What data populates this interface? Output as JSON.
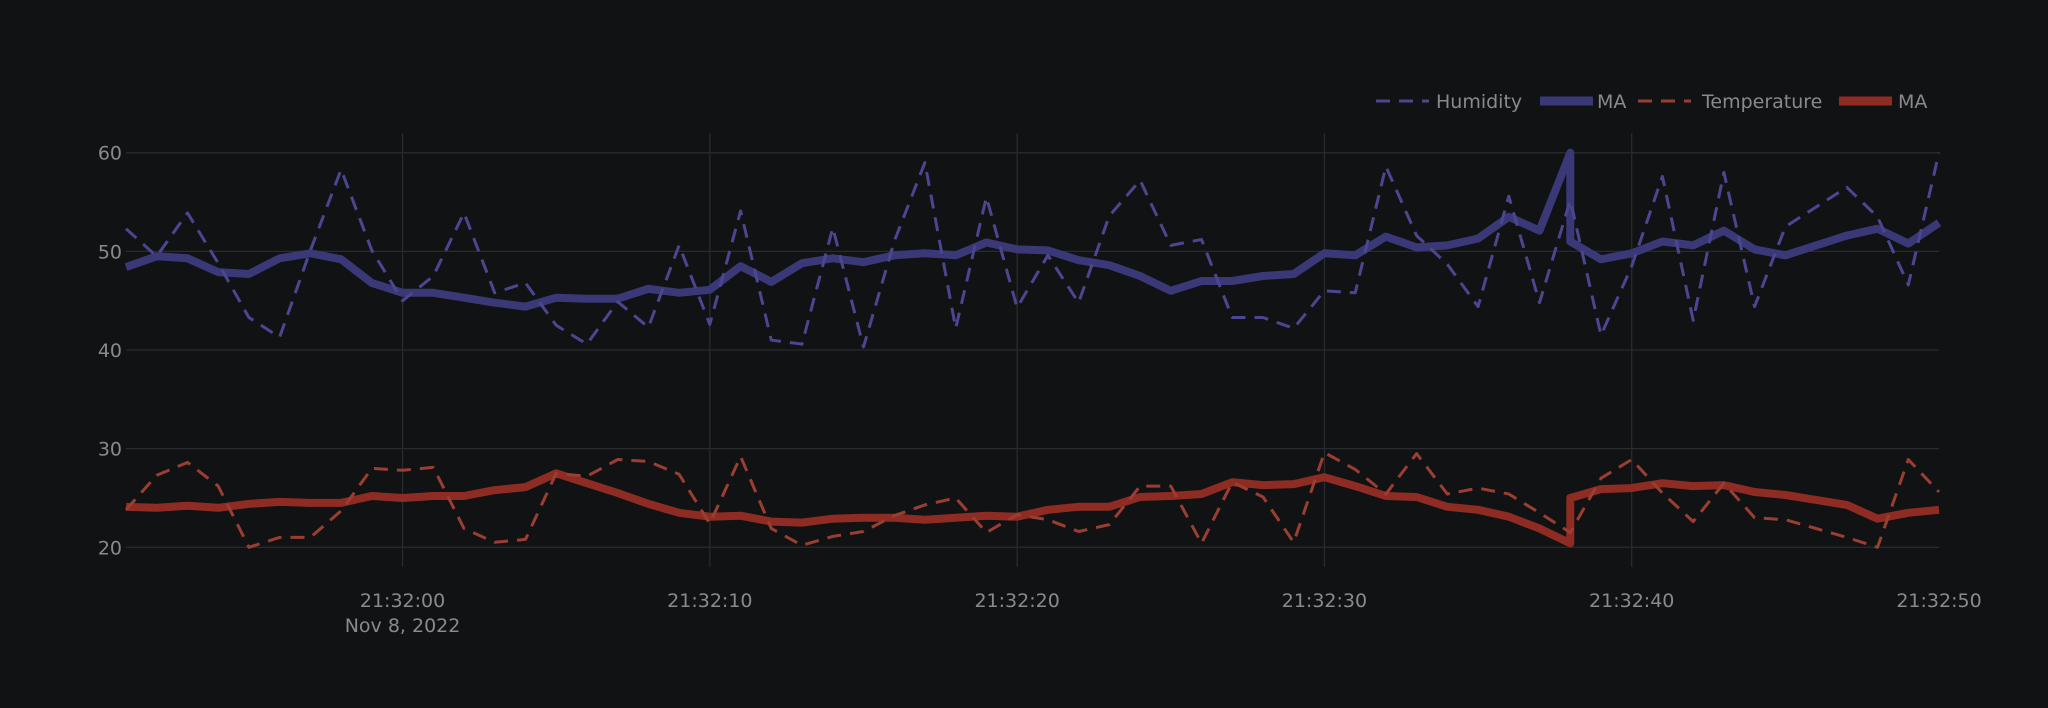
{
  "colors": {
    "background": "#111214",
    "grid": "#2a2b2f",
    "text": "#8a8a8e",
    "humidity": "#3b3878",
    "temperature": "#8e2c24"
  },
  "legend": {
    "items": [
      {
        "label": "Humidity",
        "style": "dashed",
        "color": "#4a4690"
      },
      {
        "label": "MA",
        "style": "solid",
        "color": "#3b3878"
      },
      {
        "label": "Temperature",
        "style": "dashed",
        "color": "#9a3e32"
      },
      {
        "label": "MA",
        "style": "solid",
        "color": "#8e2c24"
      }
    ]
  },
  "chart_data": {
    "type": "line",
    "title": "",
    "xlabel": "",
    "ylabel": "",
    "legend_position": "top-right",
    "grid": true,
    "xlim": [
      "21:31:51",
      "21:32:50"
    ],
    "ylim": [
      18,
      62
    ],
    "x_ticks": [
      {
        "value": "21:32:00",
        "label": "21:32:00",
        "sublabel": "Nov 8, 2022"
      },
      {
        "value": "21:32:10",
        "label": "21:32:10",
        "sublabel": ""
      },
      {
        "value": "21:32:20",
        "label": "21:32:20",
        "sublabel": ""
      },
      {
        "value": "21:32:30",
        "label": "21:32:30",
        "sublabel": ""
      },
      {
        "value": "21:32:40",
        "label": "21:32:40",
        "sublabel": ""
      },
      {
        "value": "21:32:50",
        "label": "21:32:50",
        "sublabel": ""
      }
    ],
    "y_ticks": [
      20,
      30,
      40,
      50,
      60
    ],
    "series": [
      {
        "name": "Humidity",
        "style": "dashed",
        "color": "#4a4690",
        "x": [
          "21:31:51",
          "21:31:52",
          "21:31:53",
          "21:31:54",
          "21:31:55",
          "21:31:56",
          "21:31:57",
          "21:31:58",
          "21:31:59",
          "21:32:00",
          "21:32:01",
          "21:32:02",
          "21:32:03",
          "21:32:04",
          "21:32:05",
          "21:32:06",
          "21:32:07",
          "21:32:08",
          "21:32:09",
          "21:32:10",
          "21:32:11",
          "21:32:12",
          "21:32:13",
          "21:32:14",
          "21:32:15",
          "21:32:16",
          "21:32:17",
          "21:32:18",
          "21:32:19",
          "21:32:20",
          "21:32:21",
          "21:32:22",
          "21:32:23",
          "21:32:24",
          "21:32:25",
          "21:32:26",
          "21:32:27",
          "21:32:28",
          "21:32:29",
          "21:32:30",
          "21:32:31",
          "21:32:32",
          "21:32:33",
          "21:32:34",
          "21:32:35",
          "21:32:36",
          "21:32:37",
          "21:32:38",
          "21:32:39",
          "21:32:40",
          "21:32:41",
          "21:32:42",
          "21:32:43",
          "21:32:44",
          "21:32:45",
          "21:32:46",
          "21:32:47",
          "21:32:48",
          "21:32:49",
          "21:32:50"
        ],
        "y": [
          52.3,
          49.5,
          53.9,
          48.8,
          43.3,
          41.3,
          50.1,
          58.3,
          50.1,
          45.0,
          47.5,
          53.9,
          45.8,
          46.8,
          42.5,
          40.6,
          44.9,
          42.3,
          50.6,
          42.6,
          54.1,
          41.0,
          40.6,
          52.4,
          40.3,
          51.0,
          59.0,
          42.2,
          55.5,
          44.3,
          49.6,
          44.8,
          53.6,
          57.2,
          50.6,
          51.2,
          43.3,
          43.3,
          42.2,
          46.0,
          45.8,
          58.6,
          51.6,
          48.7,
          44.4,
          55.6,
          44.8,
          55.2,
          41.5,
          48.5,
          57.6,
          43.0,
          58.0,
          44.4,
          52.5,
          54.5,
          56.5,
          53.5,
          46.6,
          60.0
        ]
      },
      {
        "name": "MA",
        "style": "solid",
        "color": "#3b3878",
        "x": [
          "21:31:51",
          "21:31:52",
          "21:31:53",
          "21:31:54",
          "21:31:55",
          "21:31:56",
          "21:31:57",
          "21:31:58",
          "21:31:59",
          "21:32:00",
          "21:32:01",
          "21:32:02",
          "21:32:03",
          "21:32:04",
          "21:32:05",
          "21:32:06",
          "21:32:07",
          "21:32:08",
          "21:32:09",
          "21:32:10",
          "21:32:11",
          "21:32:12",
          "21:32:13",
          "21:32:14",
          "21:32:15",
          "21:32:16",
          "21:32:17",
          "21:32:18",
          "21:32:19",
          "21:32:20",
          "21:32:21",
          "21:32:22",
          "21:32:23",
          "21:32:24",
          "21:32:25",
          "21:32:26",
          "21:32:27",
          "21:32:28",
          "21:32:29",
          "21:32:30",
          "21:32:31",
          "21:32:32",
          "21:32:33",
          "21:32:34",
          "21:32:35",
          "21:32:36",
          "21:32:37",
          "21:32:38",
          "21:32:38",
          "21:32:39",
          "21:32:40",
          "21:32:41",
          "21:32:42",
          "21:32:43",
          "21:32:44",
          "21:32:45",
          "21:32:46",
          "21:32:47",
          "21:32:48",
          "21:32:49",
          "21:32:50"
        ],
        "y": [
          48.4,
          49.5,
          49.3,
          47.9,
          47.7,
          49.3,
          49.8,
          49.2,
          46.8,
          45.8,
          45.8,
          45.3,
          44.8,
          44.4,
          45.3,
          45.2,
          45.2,
          46.2,
          45.8,
          46.1,
          48.5,
          46.9,
          48.8,
          49.3,
          48.9,
          49.6,
          49.8,
          49.6,
          50.9,
          50.2,
          50.1,
          49.1,
          48.6,
          47.5,
          46.0,
          47.0,
          47.0,
          47.5,
          47.7,
          49.8,
          49.6,
          51.5,
          50.4,
          50.6,
          51.3,
          53.5,
          52.1,
          60.0,
          51.0,
          49.2,
          49.8,
          51.0,
          50.6,
          52.1,
          50.2,
          49.6,
          50.6,
          51.6,
          52.3,
          50.8,
          52.9
        ]
      },
      {
        "name": "Temperature",
        "style": "dashed",
        "color": "#9a3e32",
        "x": [
          "21:31:51",
          "21:31:52",
          "21:31:53",
          "21:31:54",
          "21:31:55",
          "21:31:56",
          "21:31:57",
          "21:31:58",
          "21:31:59",
          "21:32:00",
          "21:32:01",
          "21:32:02",
          "21:32:03",
          "21:32:04",
          "21:32:05",
          "21:32:06",
          "21:32:07",
          "21:32:08",
          "21:32:09",
          "21:32:10",
          "21:32:11",
          "21:32:12",
          "21:32:13",
          "21:32:14",
          "21:32:15",
          "21:32:16",
          "21:32:17",
          "21:32:18",
          "21:32:19",
          "21:32:20",
          "21:32:21",
          "21:32:22",
          "21:32:23",
          "21:32:24",
          "21:32:25",
          "21:32:26",
          "21:32:27",
          "21:32:28",
          "21:32:29",
          "21:32:30",
          "21:32:31",
          "21:32:32",
          "21:32:33",
          "21:32:34",
          "21:32:35",
          "21:32:36",
          "21:32:37",
          "21:32:38",
          "21:32:39",
          "21:32:40",
          "21:32:41",
          "21:32:42",
          "21:32:43",
          "21:32:44",
          "21:32:45",
          "21:32:46",
          "21:32:47",
          "21:32:48",
          "21:32:49",
          "21:32:50"
        ],
        "y": [
          23.8,
          27.3,
          28.6,
          26.2,
          20.0,
          21.0,
          21.0,
          23.7,
          28.0,
          27.8,
          28.1,
          21.9,
          20.5,
          20.8,
          27.5,
          27.2,
          28.9,
          28.7,
          27.4,
          22.4,
          29.2,
          21.9,
          20.2,
          21.1,
          21.6,
          23.2,
          24.3,
          25.0,
          21.5,
          23.3,
          22.8,
          21.6,
          22.3,
          26.2,
          26.2,
          20.4,
          26.6,
          25.1,
          20.5,
          29.6,
          27.9,
          25.4,
          29.5,
          25.4,
          26.0,
          25.4,
          23.5,
          21.5,
          27.0,
          28.9,
          25.5,
          22.6,
          26.5,
          23.0,
          22.8,
          21.9,
          21.0,
          20.0,
          28.9,
          25.6
        ]
      },
      {
        "name": "MA",
        "style": "solid",
        "color": "#8e2c24",
        "x": [
          "21:31:51",
          "21:31:52",
          "21:31:53",
          "21:31:54",
          "21:31:55",
          "21:31:56",
          "21:31:57",
          "21:31:58",
          "21:31:59",
          "21:32:00",
          "21:32:01",
          "21:32:02",
          "21:32:03",
          "21:32:04",
          "21:32:05",
          "21:32:06",
          "21:32:07",
          "21:32:08",
          "21:32:09",
          "21:32:10",
          "21:32:11",
          "21:32:12",
          "21:32:13",
          "21:32:14",
          "21:32:15",
          "21:32:16",
          "21:32:17",
          "21:32:18",
          "21:32:19",
          "21:32:20",
          "21:32:21",
          "21:32:22",
          "21:32:23",
          "21:32:24",
          "21:32:25",
          "21:32:26",
          "21:32:27",
          "21:32:28",
          "21:32:29",
          "21:32:30",
          "21:32:31",
          "21:32:32",
          "21:32:33",
          "21:32:34",
          "21:32:35",
          "21:32:36",
          "21:32:37",
          "21:32:38",
          "21:32:38",
          "21:32:39",
          "21:32:40",
          "21:32:41",
          "21:32:42",
          "21:32:43",
          "21:32:44",
          "21:32:45",
          "21:32:46",
          "21:32:47",
          "21:32:48",
          "21:32:49",
          "21:32:50"
        ],
        "y": [
          24.1,
          24.0,
          24.2,
          24.0,
          24.4,
          24.6,
          24.5,
          24.5,
          25.2,
          25.0,
          25.2,
          25.2,
          25.8,
          26.1,
          27.5,
          26.5,
          25.5,
          24.4,
          23.5,
          23.1,
          23.2,
          22.6,
          22.5,
          22.9,
          23.0,
          23.0,
          22.8,
          23.0,
          23.2,
          23.1,
          23.8,
          24.1,
          24.1,
          25.1,
          25.2,
          25.4,
          26.6,
          26.3,
          26.4,
          27.1,
          26.2,
          25.2,
          25.1,
          24.1,
          23.8,
          23.1,
          21.9,
          20.4,
          25.0,
          25.9,
          26.0,
          26.5,
          26.2,
          26.3,
          25.6,
          25.3,
          24.8,
          24.3,
          22.9,
          23.5,
          23.8
        ]
      }
    ]
  }
}
